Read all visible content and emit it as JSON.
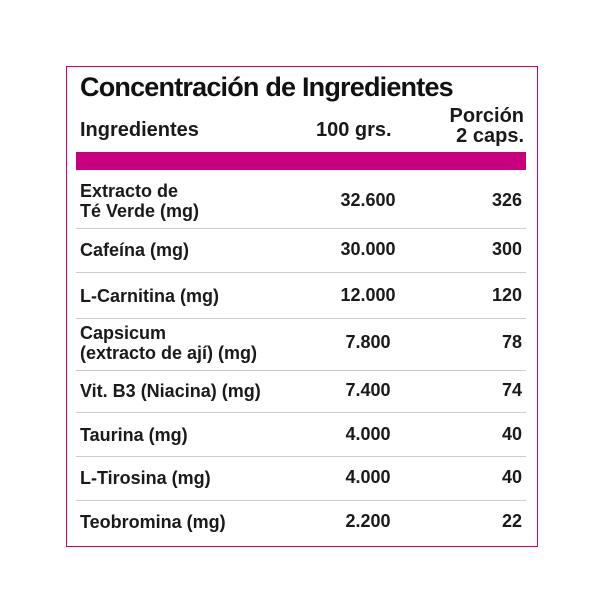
{
  "title": "Concentración de Ingredientes",
  "table": {
    "header": {
      "ingredient": "Ingredientes",
      "per100": "100 grs.",
      "portion": [
        "Porción",
        "2 caps."
      ]
    },
    "rows": [
      {
        "name": [
          "Extracto de",
          "Té Verde (mg)"
        ],
        "per100": "32.600",
        "portion": "326"
      },
      {
        "name": [
          "Cafeína (mg)"
        ],
        "per100": "30.000",
        "portion": "300"
      },
      {
        "name": [
          "L-Carnitina (mg)"
        ],
        "per100": "12.000",
        "portion": "120"
      },
      {
        "name": [
          "Capsicum",
          "(extracto de ají) (mg)"
        ],
        "per100": "7.800",
        "portion": "78"
      },
      {
        "name": [
          "Vit. B3 (Niacina) (mg)"
        ],
        "per100": "7.400",
        "portion": "74"
      },
      {
        "name": [
          "Taurina (mg)"
        ],
        "per100": "4.000",
        "portion": "40"
      },
      {
        "name": [
          "L-Tirosina (mg)"
        ],
        "per100": "4.000",
        "portion": "40"
      },
      {
        "name": [
          "Teobromina (mg)"
        ],
        "per100": "2.200",
        "portion": "22"
      }
    ]
  }
}
